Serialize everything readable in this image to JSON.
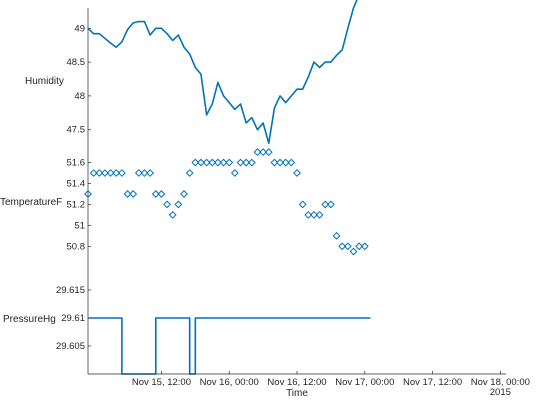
{
  "chart_data": [
    {
      "type": "line",
      "ylabel": "Humidity",
      "ylim": [
        47.2,
        49.3
      ],
      "yticks": [
        "47.5",
        "48",
        "48.5",
        "49"
      ],
      "color": "#0072BD",
      "x": [
        "2015-11-14T23:00",
        "2015-11-15T00:00",
        "2015-11-15T01:00",
        "2015-11-15T02:00",
        "2015-11-15T03:00",
        "2015-11-15T04:00",
        "2015-11-15T05:00",
        "2015-11-15T06:00",
        "2015-11-15T07:00",
        "2015-11-15T08:00",
        "2015-11-15T09:00",
        "2015-11-15T10:00",
        "2015-11-15T11:00",
        "2015-11-15T12:00",
        "2015-11-15T13:00",
        "2015-11-15T14:00",
        "2015-11-15T15:00",
        "2015-11-15T16:00",
        "2015-11-15T17:00",
        "2015-11-15T18:00",
        "2015-11-15T19:00",
        "2015-11-15T20:00",
        "2015-11-15T21:00",
        "2015-11-15T22:00",
        "2015-11-15T23:00",
        "2015-11-16T00:00",
        "2015-11-16T01:00",
        "2015-11-16T02:00",
        "2015-11-16T03:00",
        "2015-11-16T04:00",
        "2015-11-16T05:00",
        "2015-11-16T06:00",
        "2015-11-16T07:00",
        "2015-11-16T08:00",
        "2015-11-16T09:00",
        "2015-11-16T10:00",
        "2015-11-16T11:00",
        "2015-11-16T12:00",
        "2015-11-16T13:00",
        "2015-11-16T14:00",
        "2015-11-16T15:00",
        "2015-11-16T16:00",
        "2015-11-16T17:00",
        "2015-11-16T18:00",
        "2015-11-16T19:00",
        "2015-11-16T20:00",
        "2015-11-16T21:00",
        "2015-11-16T22:00",
        "2015-11-16T23:00",
        "2015-11-17T00:00",
        "2015-11-17T01:00",
        "2015-11-17T02:00",
        "2015-11-17T03:00",
        "2015-11-17T04:00",
        "2015-11-17T05:00",
        "2015-11-17T06:00",
        "2015-11-17T07:00",
        "2015-11-17T08:00",
        "2015-11-17T09:00",
        "2015-11-17T10:00",
        "2015-11-17T11:00",
        "2015-11-17T12:00",
        "2015-11-17T13:00",
        "2015-11-17T14:00",
        "2015-11-17T15:00",
        "2015-11-17T16:00",
        "2015-11-17T17:00",
        "2015-11-17T18:00",
        "2015-11-17T19:00",
        "2015-11-17T20:00",
        "2015-11-17T21:00",
        "2015-11-17T22:00",
        "2015-11-17T23:00",
        "2015-11-18T00:00",
        "2015-11-18T01:00"
      ],
      "values": [
        49.0,
        48.92,
        48.92,
        48.85,
        48.78,
        48.72,
        48.8,
        48.98,
        49.08,
        49.1,
        49.1,
        48.9,
        49.0,
        49.0,
        48.92,
        48.82,
        48.9,
        48.72,
        48.62,
        48.42,
        48.32,
        47.72,
        47.88,
        48.2,
        48.0,
        47.9,
        47.8,
        47.88,
        47.6,
        47.68,
        47.5,
        47.6,
        47.3,
        47.82,
        48.0,
        47.9,
        48.0,
        48.1,
        48.1,
        48.28,
        48.5,
        48.42,
        48.5,
        48.5,
        48.6,
        48.68,
        49.0,
        49.3,
        49.5,
        49.5,
        49.5,
        49.5,
        49.5,
        49.5,
        49.5,
        49.5,
        49.5,
        49.5,
        49.5,
        49.5,
        49.5,
        49.5,
        49.5,
        49.5,
        49.5,
        49.5,
        49.5,
        49.5,
        49.5,
        49.5,
        49.5,
        49.5,
        49.5,
        49.5,
        49.5
      ]
    },
    {
      "type": "scatter",
      "ylabel": "TemperatureF",
      "ylim": [
        50.65,
        51.72
      ],
      "yticks": [
        "50.8",
        "51",
        "51.2",
        "51.4",
        "51.6"
      ],
      "color": "#0072BD",
      "x": [
        "2015-11-14T23:00",
        "2015-11-15T00:00",
        "2015-11-15T01:00",
        "2015-11-15T02:00",
        "2015-11-15T03:00",
        "2015-11-15T04:00",
        "2015-11-15T05:00",
        "2015-11-15T06:00",
        "2015-11-15T07:00",
        "2015-11-15T08:00",
        "2015-11-15T09:00",
        "2015-11-15T10:00",
        "2015-11-15T11:00",
        "2015-11-15T12:00",
        "2015-11-15T13:00",
        "2015-11-15T14:00",
        "2015-11-15T15:00",
        "2015-11-15T16:00",
        "2015-11-15T17:00",
        "2015-11-15T18:00",
        "2015-11-15T19:00",
        "2015-11-15T20:00",
        "2015-11-15T21:00",
        "2015-11-15T22:00",
        "2015-11-15T23:00",
        "2015-11-16T00:00",
        "2015-11-16T01:00",
        "2015-11-16T02:00",
        "2015-11-16T03:00",
        "2015-11-16T04:00",
        "2015-11-16T05:00",
        "2015-11-16T06:00",
        "2015-11-16T07:00",
        "2015-11-16T08:00",
        "2015-11-16T09:00",
        "2015-11-16T10:00",
        "2015-11-16T11:00",
        "2015-11-16T12:00",
        "2015-11-16T13:00",
        "2015-11-16T14:00",
        "2015-11-16T15:00",
        "2015-11-16T16:00",
        "2015-11-16T17:00",
        "2015-11-16T18:00",
        "2015-11-16T19:00",
        "2015-11-16T20:00",
        "2015-11-16T21:00",
        "2015-11-16T22:00",
        "2015-11-16T23:00",
        "2015-11-17T00:00"
      ],
      "values": [
        51.3,
        51.5,
        51.5,
        51.5,
        51.5,
        51.5,
        51.5,
        51.3,
        51.3,
        51.5,
        51.5,
        51.5,
        51.3,
        51.3,
        51.2,
        51.1,
        51.2,
        51.3,
        51.5,
        51.6,
        51.6,
        51.6,
        51.6,
        51.6,
        51.6,
        51.6,
        51.5,
        51.6,
        51.6,
        51.6,
        51.7,
        51.7,
        51.7,
        51.6,
        51.6,
        51.6,
        51.6,
        51.5,
        51.2,
        51.1,
        51.1,
        51.1,
        51.2,
        51.2,
        50.9,
        50.8,
        50.8,
        50.75,
        50.8,
        50.8
      ]
    },
    {
      "type": "line",
      "step": true,
      "xlabel": "Time",
      "ylabel": "PressureHg",
      "ylim": [
        29.6,
        29.62
      ],
      "yticks": [
        "29.605",
        "29.61",
        "29.615"
      ],
      "color": "#0072BD",
      "xticks": [
        "Nov 15, 12:00",
        "Nov 16, 00:00",
        "Nov 16, 12:00",
        "Nov 17, 00:00",
        "Nov 17, 12:00",
        "Nov 18, 00:00"
      ],
      "xtick_year": "2015",
      "x": [
        "2015-11-14T23:00",
        "2015-11-15T05:00",
        "2015-11-15T06:00",
        "2015-11-15T11:00",
        "2015-11-15T12:00",
        "2015-11-15T17:00",
        "2015-11-15T18:00",
        "2015-11-15T22:00",
        "2015-11-15T23:00",
        "2015-11-16T00:00",
        "2015-11-16T01:00",
        "2015-11-16T02:00",
        "2015-11-16T03:00",
        "2015-11-16T04:00",
        "2015-11-16T05:00",
        "2015-11-16T06:00",
        "2015-11-16T07:00",
        "2015-11-16T08:00",
        "2015-11-16T09:00",
        "2015-11-16T10:00",
        "2015-11-16T11:00",
        "2015-11-16T12:00",
        "2015-11-16T13:00",
        "2015-11-16T14:00",
        "2015-11-16T15:00",
        "2015-11-16T16:00",
        "2015-11-16T17:00",
        "2015-11-16T18:00",
        "2015-11-16T19:00",
        "2015-11-16T20:00",
        "2015-11-16T21:00",
        "2015-11-16T22:00",
        "2015-11-16T23:00",
        "2015-11-17T00:00",
        "2015-11-17T01:00"
      ],
      "values": [
        29.61,
        29.6,
        29.6,
        29.61,
        29.61,
        29.6,
        29.61,
        29.61,
        29.61,
        29.61,
        29.61,
        29.61,
        29.61,
        29.61,
        29.61,
        29.61,
        29.61,
        29.61,
        29.61,
        29.61,
        29.61,
        29.61,
        29.61,
        29.61,
        29.61,
        29.61,
        29.61,
        29.61,
        29.61,
        29.61,
        29.61,
        29.61,
        29.61,
        29.61,
        29.61
      ]
    }
  ]
}
